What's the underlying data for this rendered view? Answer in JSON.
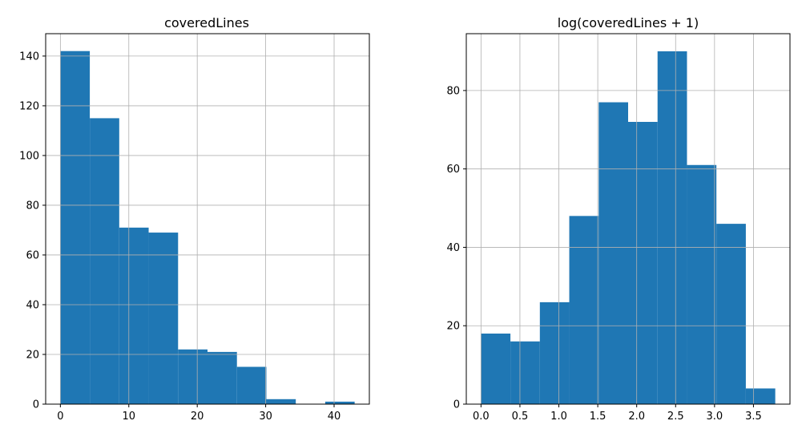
{
  "figure": {
    "background": "#ffffff"
  },
  "chart_data": [
    {
      "type": "bar",
      "subtype": "histogram",
      "title": "coveredLines",
      "xlabel": "",
      "ylabel": "",
      "bin_edges": [
        0,
        4.3,
        8.6,
        12.9,
        17.2,
        21.5,
        25.8,
        30.1,
        34.4,
        38.7,
        43.0
      ],
      "values": [
        142,
        115,
        71,
        69,
        22,
        21,
        15,
        2,
        0,
        1
      ],
      "xlim": [
        -2.15,
        45.15
      ],
      "ylim": [
        0,
        149
      ],
      "xticks": [
        0,
        10,
        20,
        30,
        40
      ],
      "xtick_labels": [
        "0",
        "10",
        "20",
        "30",
        "40"
      ],
      "yticks": [
        0,
        20,
        40,
        60,
        80,
        100,
        120,
        140
      ],
      "ytick_labels": [
        "0",
        "20",
        "40",
        "60",
        "80",
        "100",
        "120",
        "140"
      ],
      "grid": true,
      "color": "#1f77b4"
    },
    {
      "type": "bar",
      "subtype": "histogram",
      "title": "log(coveredLines + 1)",
      "xlabel": "",
      "ylabel": "",
      "bin_edges": [
        0,
        0.378,
        0.756,
        1.134,
        1.512,
        1.89,
        2.268,
        2.646,
        3.024,
        3.402,
        3.78
      ],
      "values": [
        18,
        16,
        26,
        48,
        77,
        72,
        90,
        61,
        46,
        4
      ],
      "xlim": [
        -0.189,
        3.969
      ],
      "ylim": [
        0,
        94.5
      ],
      "xticks": [
        0,
        0.5,
        1,
        1.5,
        2,
        2.5,
        3,
        3.5
      ],
      "xtick_labels": [
        "0.0",
        "0.5",
        "1.0",
        "1.5",
        "2.0",
        "2.5",
        "3.0",
        "3.5"
      ],
      "yticks": [
        0,
        20,
        40,
        60,
        80
      ],
      "ytick_labels": [
        "0",
        "20",
        "40",
        "60",
        "80"
      ],
      "grid": true,
      "color": "#1f77b4"
    }
  ]
}
